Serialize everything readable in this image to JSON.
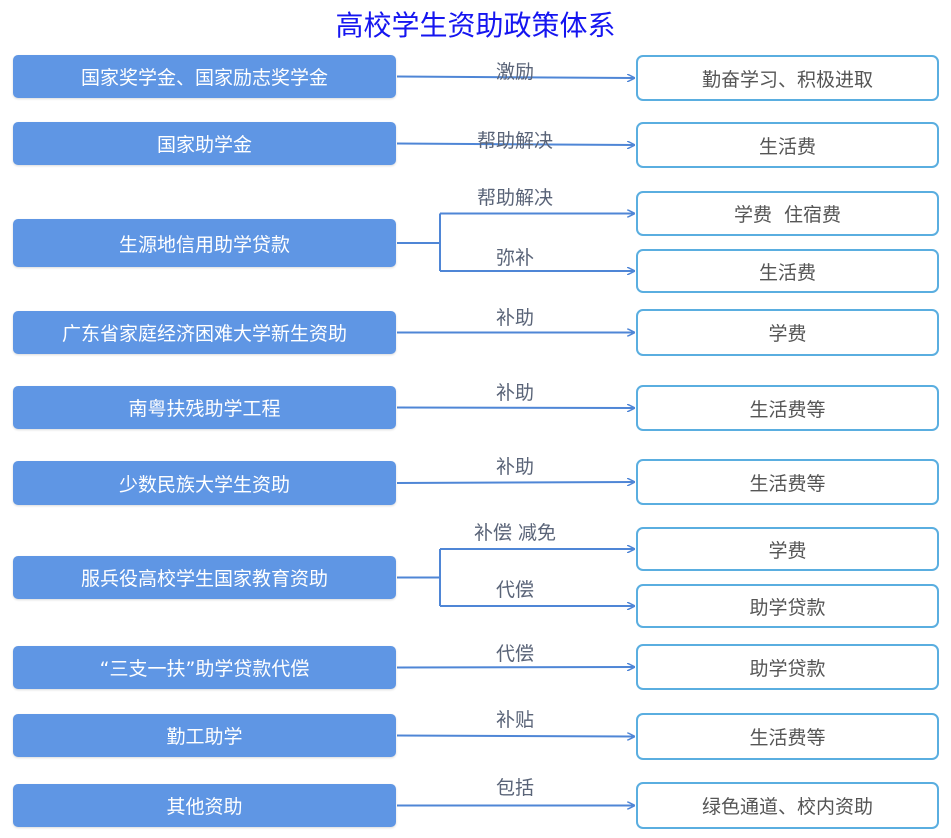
{
  "title": "高校学生资助政策体系",
  "colors": {
    "title": "#1515f0",
    "source_box": "#5f96e4",
    "target_border": "#5aaee0",
    "arrow": "#4f86d6"
  },
  "rows": [
    {
      "source": "国家奖学金、国家励志奖学金",
      "branches": [
        {
          "label": "激励",
          "target": "勤奋学习、积极进取"
        }
      ]
    },
    {
      "source": "国家助学金",
      "branches": [
        {
          "label": "帮助解决",
          "target": "生活费"
        }
      ]
    },
    {
      "source": "生源地信用助学贷款",
      "branches": [
        {
          "label": "帮助解决",
          "target": "学费  住宿费"
        },
        {
          "label": "弥补",
          "target": "生活费"
        }
      ]
    },
    {
      "source": "广东省家庭经济困难大学新生资助",
      "branches": [
        {
          "label": "补助",
          "target": "学费"
        }
      ]
    },
    {
      "source": "南粤扶残助学工程",
      "branches": [
        {
          "label": "补助",
          "target": "生活费等"
        }
      ]
    },
    {
      "source": "少数民族大学生资助",
      "branches": [
        {
          "label": "补助",
          "target": "生活费等"
        }
      ]
    },
    {
      "source": "服兵役高校学生国家教育资助",
      "branches": [
        {
          "label": "补偿  减免",
          "target": "学费"
        },
        {
          "label": "代偿",
          "target": "助学贷款"
        }
      ]
    },
    {
      "source": "“三支一扶”助学贷款代偿",
      "branches": [
        {
          "label": "代偿",
          "target": "助学贷款"
        }
      ]
    },
    {
      "source": "勤工助学",
      "branches": [
        {
          "label": "补贴",
          "target": "生活费等"
        }
      ]
    },
    {
      "source": "其他资助",
      "branches": [
        {
          "label": "包括",
          "target": "绿色通道、校内资助"
        }
      ]
    }
  ]
}
